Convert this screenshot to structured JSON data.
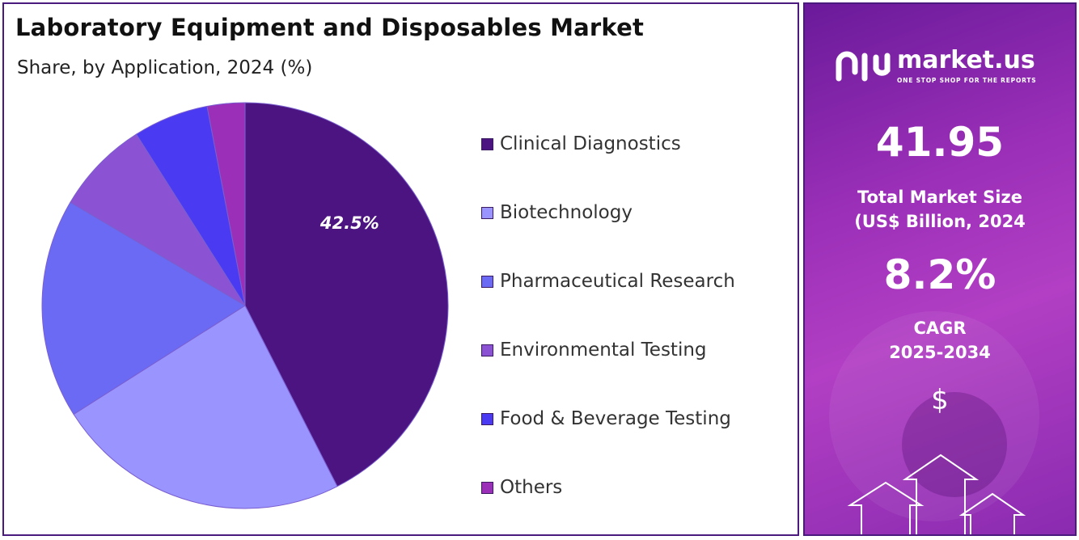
{
  "chart_data": {
    "type": "pie",
    "title": "Laboratory Equipment and Disposables Market",
    "subtitle": "Share, by Application, 2024 (%)",
    "slices": [
      {
        "name": "Clinical Diagnostics",
        "value": 42.5,
        "color": "#4c1480",
        "label": "42.5%"
      },
      {
        "name": "Biotechnology",
        "value": 23.5,
        "color": "#9a94ff",
        "label": ""
      },
      {
        "name": "Pharmaceutical Research",
        "value": 17.5,
        "color": "#6a6af5",
        "label": ""
      },
      {
        "name": "Environmental Testing",
        "value": 7.5,
        "color": "#8c52d4",
        "label": ""
      },
      {
        "name": "Food & Beverage Testing",
        "value": 6.0,
        "color": "#4a3af2",
        "label": ""
      },
      {
        "name": "Others",
        "value": 3.0,
        "color": "#9b2fb8",
        "label": ""
      }
    ],
    "legend_position": "right"
  },
  "sidebar": {
    "logo_name": "market.us",
    "logo_tagline": "ONE STOP SHOP FOR THE REPORTS",
    "market_size_value": "41.95",
    "market_size_label_line1": "Total Market Size",
    "market_size_label_line2": "(US$ Billion, 2024",
    "cagr_value": "8.2%",
    "cagr_label_line1": "CAGR",
    "cagr_label_line2": "2025-2034",
    "currency_symbol": "$"
  }
}
